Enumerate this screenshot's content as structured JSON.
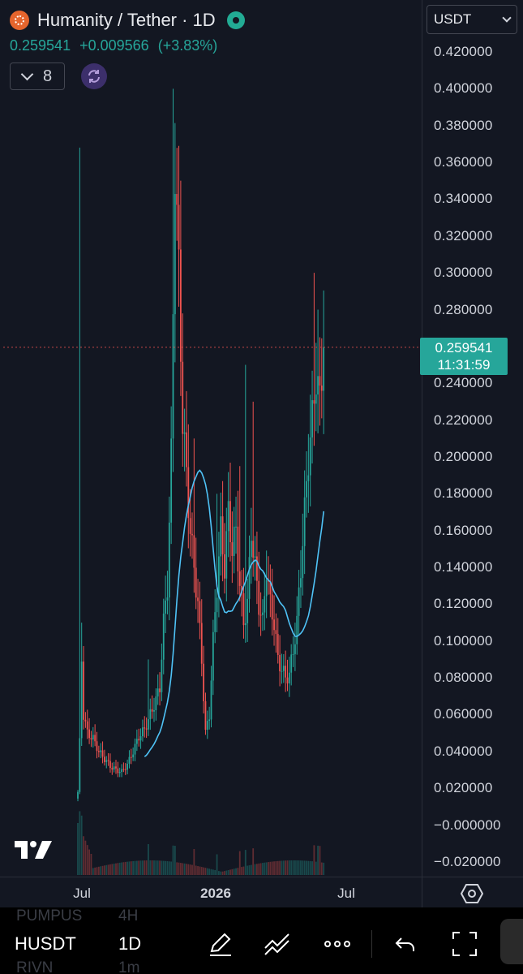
{
  "header": {
    "title": "Humanity / Tether · 1D",
    "last_price": "0.259541",
    "change": "+0.009566",
    "change_pct": "(+3.83%)",
    "indicator_count": "8",
    "currency": "USDT"
  },
  "price_label": {
    "price": "0.259541",
    "countdown": "11:31:59"
  },
  "toolbar": {
    "symbol": "HUSDT",
    "interval": "1D",
    "ghost_symbols": [
      "PUMPUS",
      "4H",
      "RIVN",
      "1m"
    ],
    "icons": [
      "pencil-icon",
      "trend-lines-icon",
      "more-icon",
      "undo-icon",
      "fullscreen-icon"
    ]
  },
  "colors": {
    "up": "#26a69a",
    "down": "#ef5350",
    "ma": "#4fc3f7",
    "background": "#131722"
  },
  "chart_data": {
    "type": "candlestick",
    "interval": "1D",
    "ylim": [
      -0.02,
      0.42
    ],
    "yticks": [
      "0.420000",
      "0.400000",
      "0.380000",
      "0.360000",
      "0.340000",
      "0.320000",
      "0.300000",
      "0.280000",
      "0.240000",
      "0.220000",
      "0.200000",
      "0.180000",
      "0.160000",
      "0.140000",
      "0.120000",
      "0.100000",
      "0.080000",
      "0.060000",
      "0.040000",
      "0.020000",
      "−0.000000",
      "−0.020000"
    ],
    "xticks": [
      {
        "label": "Jul",
        "bold": false
      },
      {
        "label": "2026",
        "bold": true
      },
      {
        "label": "Jul",
        "bold": false
      }
    ],
    "last_price": 0.259541,
    "keyframes": [
      [
        0,
        0.018
      ],
      [
        1,
        0.045
      ],
      [
        2,
        0.09
      ],
      [
        3,
        0.06
      ],
      [
        5,
        0.05
      ],
      [
        8,
        0.047
      ],
      [
        11,
        0.04
      ],
      [
        14,
        0.036
      ],
      [
        17,
        0.032
      ],
      [
        20,
        0.03
      ],
      [
        23,
        0.029
      ],
      [
        26,
        0.033
      ],
      [
        29,
        0.04
      ],
      [
        32,
        0.048
      ],
      [
        35,
        0.052
      ],
      [
        38,
        0.06
      ],
      [
        41,
        0.068
      ],
      [
        43,
        0.075
      ],
      [
        45,
        0.11
      ],
      [
        47,
        0.13
      ],
      [
        49,
        0.2
      ],
      [
        51,
        0.36
      ],
      [
        53,
        0.3
      ],
      [
        55,
        0.22
      ],
      [
        57,
        0.19
      ],
      [
        59,
        0.16
      ],
      [
        61,
        0.14
      ],
      [
        63,
        0.12
      ],
      [
        65,
        0.09
      ],
      [
        67,
        0.05
      ],
      [
        69,
        0.06
      ],
      [
        71,
        0.1
      ],
      [
        73,
        0.13
      ],
      [
        75,
        0.16
      ],
      [
        77,
        0.14
      ],
      [
        79,
        0.17
      ],
      [
        81,
        0.15
      ],
      [
        83,
        0.16
      ],
      [
        85,
        0.13
      ],
      [
        87,
        0.11
      ],
      [
        89,
        0.12
      ],
      [
        91,
        0.16
      ],
      [
        93,
        0.14
      ],
      [
        95,
        0.12
      ],
      [
        97,
        0.11
      ],
      [
        99,
        0.14
      ],
      [
        101,
        0.12
      ],
      [
        103,
        0.11
      ],
      [
        105,
        0.09
      ],
      [
        107,
        0.085
      ],
      [
        109,
        0.08
      ],
      [
        111,
        0.082
      ],
      [
        113,
        0.095
      ],
      [
        115,
        0.11
      ],
      [
        117,
        0.14
      ],
      [
        119,
        0.17
      ],
      [
        121,
        0.2
      ],
      [
        123,
        0.22
      ],
      [
        125,
        0.245
      ],
      [
        127,
        0.23
      ],
      [
        129,
        0.26
      ]
    ],
    "wick_spikes": [
      [
        1,
        0.368
      ],
      [
        2,
        0.11
      ],
      [
        37,
        0.09
      ],
      [
        50,
        0.4
      ],
      [
        51,
        0.36
      ],
      [
        61,
        0.21
      ],
      [
        73,
        0.18
      ],
      [
        85,
        0.195
      ],
      [
        88,
        0.25
      ],
      [
        92,
        0.23
      ],
      [
        124,
        0.3
      ],
      [
        126,
        0.28
      ],
      [
        127,
        0.265
      ]
    ],
    "ma_start_index": 35,
    "ma_window": 20
  }
}
